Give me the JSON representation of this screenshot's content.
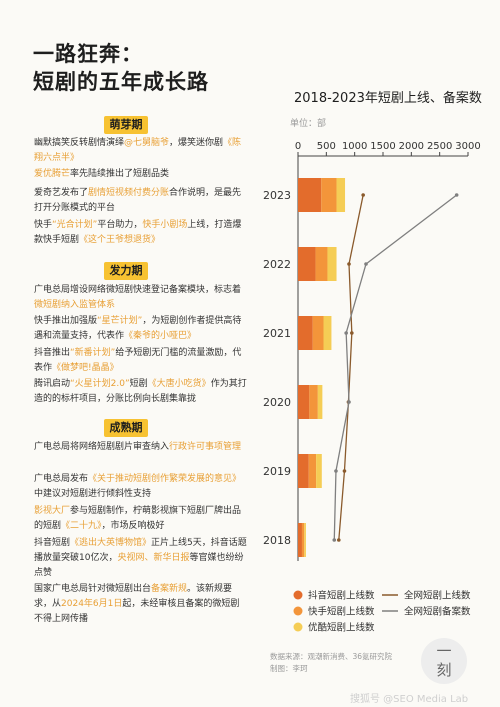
{
  "header": {
    "title_line1": "一路狂奔：",
    "title_line2": "短剧的五年成长路"
  },
  "stages": [
    {
      "label": "萌芽期"
    },
    {
      "label": "发力期"
    },
    {
      "label": "成熟期"
    }
  ],
  "paragraphs": [
    [
      {
        "t": "幽默搞笑反转剧情演绎"
      },
      {
        "t": "@七舅脑爷",
        "h": true
      },
      {
        "t": "，爆笑迷你剧"
      },
      {
        "t": "《陈翔六点半》",
        "h": true
      }
    ],
    [
      {
        "t": "爱优腾芒",
        "h": true
      },
      {
        "t": "率先陆续推出了短剧品类"
      }
    ],
    [
      {
        "t": "爱奇艺发布了"
      },
      {
        "t": "剧情短视频付费分账",
        "h": true
      },
      {
        "t": "合作说明，是最先打开分账模式的平台"
      }
    ],
    [
      {
        "t": "快手"
      },
      {
        "t": "“光合计划”",
        "h": true
      },
      {
        "t": "平台助力，"
      },
      {
        "t": "快手小剧场",
        "h": true
      },
      {
        "t": "上线，打造爆款快手短剧"
      },
      {
        "t": "《这个王爷想退货》",
        "h": true
      }
    ],
    [
      {
        "t": "广电总局增设网络微短剧快速登记备案模块，标志着"
      },
      {
        "t": "微短剧纳入监管体系",
        "h": true
      }
    ],
    [
      {
        "t": "快手推出加强版"
      },
      {
        "t": "“星芒计划”",
        "h": true
      },
      {
        "t": "，为短剧创作者提供高待遇和流量支持，代表作"
      },
      {
        "t": "《秦爷的小哑巴》",
        "h": true
      }
    ],
    [
      {
        "t": "抖音推出"
      },
      {
        "t": "“新番计划”",
        "h": true
      },
      {
        "t": "给予短剧无门槛的流量激励，代表作"
      },
      {
        "t": "《做梦吧!晶晶》",
        "h": true
      }
    ],
    [
      {
        "t": "腾讯启动"
      },
      {
        "t": "“火星计划2.0”",
        "h": true
      },
      {
        "t": "短剧"
      },
      {
        "t": "《大唐小吃货》",
        "h": true
      },
      {
        "t": "作为其打造的的标杆项目，分账比例向长剧集靠拢"
      }
    ],
    [
      {
        "t": "广电总局将网络短剧剧片审查纳入"
      },
      {
        "t": "行政许可事项管理",
        "h": true
      }
    ],
    [
      {
        "t": "广电总局发布"
      },
      {
        "t": "《关于推动短剧创作繁荣发展的意见》",
        "h": true
      },
      {
        "t": "中建议对短剧进行倾斜性支持"
      }
    ],
    [
      {
        "t": "影视大厂",
        "h": true
      },
      {
        "t": "参与短剧制作，柠萌影视旗下短剧厂牌出品的短剧"
      },
      {
        "t": "《二十九》",
        "h": true
      },
      {
        "t": "，市场反响极好"
      }
    ],
    [
      {
        "t": "抖音短剧"
      },
      {
        "t": "《逃出大英博物馆》",
        "h": true
      },
      {
        "t": "正片上线5天，抖音话题播放量突破10亿次，"
      },
      {
        "t": "央视网、新华日报",
        "h": true
      },
      {
        "t": "等官媒也纷纷点赞"
      }
    ],
    [
      {
        "t": "国家广电总局针对微短剧出台"
      },
      {
        "t": "备案新规",
        "h": true
      },
      {
        "t": "。该新规要求，从"
      },
      {
        "t": "2024年6月1日",
        "h": true
      },
      {
        "t": "起，未经审核且备案的微短剧不得上网传播"
      }
    ]
  ],
  "chart_data": {
    "type": "bar",
    "orientation": "horizontal",
    "title": "2018-2023年短剧上线、备案数",
    "unit_label": "单位：部",
    "categories": [
      "2023",
      "2022",
      "2021",
      "2020",
      "2019",
      "2018"
    ],
    "xlim": [
      0,
      3000
    ],
    "xticks": [
      0,
      500,
      1000,
      1500,
      2000,
      2500,
      3000
    ],
    "series": [
      {
        "name": "抖音短剧上线数",
        "kind": "bar",
        "color": "#e36c2c",
        "values": [
          410,
          310,
          260,
          200,
          190,
          70
        ]
      },
      {
        "name": "快手短剧上线数",
        "kind": "bar",
        "color": "#f3953a",
        "values": [
          270,
          210,
          190,
          150,
          130,
          40
        ]
      },
      {
        "name": "优酷短剧上线数",
        "kind": "bar",
        "color": "#f5cd55",
        "values": [
          150,
          160,
          140,
          80,
          100,
          30
        ]
      },
      {
        "name": "全网短剧上线数",
        "kind": "line",
        "color": "#8a5a2c",
        "values": [
          1150,
          900,
          950,
          890,
          820,
          720
        ]
      },
      {
        "name": "全网短剧备案数",
        "kind": "line",
        "color": "#7f7f7f",
        "values": [
          2800,
          1200,
          850,
          900,
          670,
          640
        ]
      }
    ],
    "grid": false,
    "legend_position": "bottom"
  },
  "footer": {
    "source": "数据来源：观潮新消费、36氪研究院",
    "author": "制图：李珂"
  },
  "seal": {
    "line1": "一",
    "line2": "刻"
  },
  "watermark": "搜狐号 @SEO Media Lab"
}
